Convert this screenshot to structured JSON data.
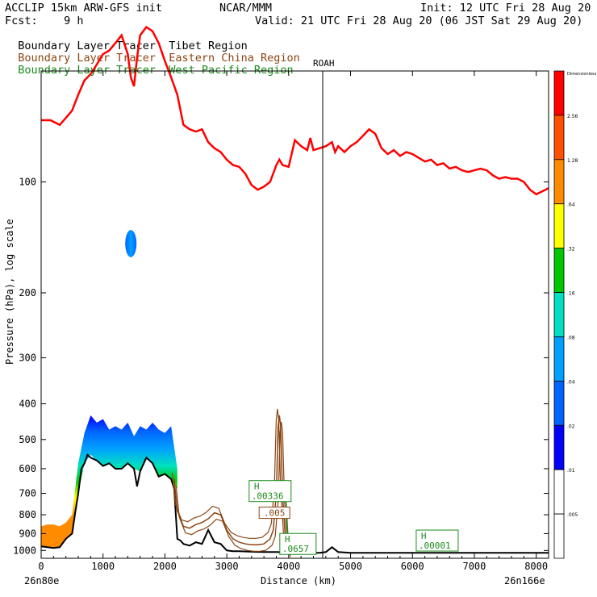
{
  "header": {
    "model": "ACCLIP 15km ARW-GFS init",
    "org": "NCAR/MMM",
    "init": "Init: 12 UTC Fri 28 Aug 20",
    "fcst": "Fcst:    9 h",
    "valid": "Valid: 21 UTC Fri 28 Aug 20 (06 JST Sat 29 Aug 20)",
    "legend": [
      {
        "prefix": "Boundary Layer Tracer",
        "region": "Tibet Region",
        "color": "#000000"
      },
      {
        "prefix": "Boundary Layer Tracer",
        "region": "Eastern China Region",
        "color": "#8b4513"
      },
      {
        "prefix": "Boundary Layer Tracer",
        "region": "West Pacific Region",
        "color": "#1a8a1a"
      }
    ]
  },
  "colorbar": {
    "levels": [
      "Dimensionless",
      "2.56",
      "1.28",
      ".64",
      ".32",
      ".16",
      ".08",
      ".04",
      ".02",
      ".01",
      ".005"
    ],
    "colors": [
      "#ff0000",
      "#ff5000",
      "#ff8c00",
      "#ffff00",
      "#00c800",
      "#00e0c0",
      "#00a0ff",
      "#0064ff",
      "#0000ff",
      "#ffffff",
      "#ffffff"
    ]
  },
  "chart_data": {
    "type": "area",
    "title": "",
    "xlabel": "Distance (km)",
    "ylabel": "Pressure (hPa), log scale",
    "xlim": [
      0,
      8200
    ],
    "ylim": [
      1050,
      50
    ],
    "y_scale": "log",
    "x_ticks": [
      0,
      1000,
      2000,
      3000,
      4000,
      5000,
      6000,
      7000,
      8000
    ],
    "y_ticks": [
      100,
      200,
      300,
      400,
      500,
      600,
      700,
      800,
      900,
      1000
    ],
    "x_endpoints": {
      "left": "26n80e",
      "right": "26n166e"
    },
    "vertical_marker": {
      "x": 4550,
      "label": "ROAH"
    },
    "tropopause_line": {
      "color": "#ff0000",
      "x": [
        0,
        150,
        300,
        400,
        500,
        600,
        700,
        800,
        900,
        1000,
        1100,
        1200,
        1300,
        1400,
        1450,
        1500,
        1550,
        1600,
        1700,
        1800,
        1900,
        2000,
        2100,
        2200,
        2300,
        2400,
        2500,
        2600,
        2700,
        2800,
        2900,
        3000,
        3100,
        3200,
        3300,
        3400,
        3500,
        3600,
        3700,
        3800,
        3850,
        3900,
        4000,
        4100,
        4200,
        4300,
        4350,
        4400,
        4500,
        4600,
        4700,
        4750,
        4800,
        4900,
        5000,
        5100,
        5200,
        5300,
        5400,
        5500,
        5600,
        5700,
        5800,
        5900,
        6000,
        6100,
        6200,
        6300,
        6400,
        6500,
        6600,
        6700,
        6800,
        6900,
        7000,
        7100,
        7200,
        7300,
        7400,
        7500,
        7600,
        7700,
        7800,
        7900,
        8000,
        8100,
        8200
      ],
      "p": [
        68,
        68,
        70,
        67,
        64,
        58,
        53,
        51,
        48,
        45,
        44,
        42,
        40,
        45,
        52,
        55,
        46,
        40,
        38,
        39,
        42,
        47,
        52,
        58,
        70,
        72,
        73,
        72,
        78,
        81,
        83,
        87,
        90,
        91,
        95,
        102,
        105,
        103,
        100,
        90,
        87,
        90,
        91,
        77,
        80,
        82,
        76,
        82,
        81,
        80,
        78,
        83,
        80,
        83,
        80,
        78,
        75,
        72,
        74,
        81,
        84,
        82,
        85,
        83,
        84,
        86,
        88,
        87,
        90,
        89,
        92,
        91,
        93,
        94,
        93,
        92,
        93,
        96,
        98,
        97,
        98,
        98,
        100,
        105,
        108,
        106,
        104
      ]
    },
    "series": [
      {
        "name": "Tibet Region",
        "color": "#000000",
        "x": [
          0,
          100,
          200,
          300,
          400,
          500,
          550,
          600,
          650,
          700,
          750,
          800,
          900,
          1000,
          1100,
          1200,
          1300,
          1400,
          1500,
          1550,
          1600,
          1700,
          1800,
          1900,
          2000,
          2100,
          2150,
          2200,
          2250,
          2300,
          2400,
          2500,
          2600,
          2700,
          2800,
          2900,
          3000,
          3100,
          3200,
          3400,
          3600,
          3800,
          4000,
          4200,
          4500,
          4600,
          4700,
          4800,
          5000,
          6000,
          7000,
          8000,
          8200
        ],
        "p": [
          975,
          980,
          985,
          980,
          930,
          900,
          790,
          700,
          600,
          580,
          550,
          560,
          570,
          590,
          580,
          600,
          600,
          580,
          600,
          670,
          610,
          560,
          580,
          630,
          620,
          640,
          680,
          930,
          940,
          960,
          970,
          950,
          960,
          880,
          950,
          960,
          1000,
          1005,
          1005,
          1008,
          1010,
          1010,
          1012,
          1015,
          1015,
          1010,
          980,
          1010,
          1015,
          1015,
          1015,
          1015,
          1015
        ]
      },
      {
        "name": "Eastern China Region",
        "color": "#8b4513",
        "x": [
          2150,
          2200,
          2300,
          2400,
          2500,
          2600,
          2700,
          2800,
          2900,
          3000,
          3100,
          3200,
          3300,
          3400,
          3500,
          3600,
          3700,
          3750,
          3800,
          3830,
          3850,
          3870,
          3900,
          3950,
          4000
        ],
        "p": [
          640,
          780,
          860,
          870,
          850,
          840,
          820,
          790,
          800,
          880,
          930,
          950,
          960,
          965,
          965,
          960,
          930,
          880,
          700,
          460,
          430,
          460,
          700,
          950,
          1000
        ]
      },
      {
        "name": "West Pacific Region",
        "color": "#1a8a1a",
        "x": [
          3800,
          3850,
          3900,
          3950,
          4000
        ],
        "p": [
          700,
          680,
          650,
          700,
          1000
        ]
      }
    ],
    "tracer_shading": {
      "x": [
        0,
        100,
        200,
        300,
        400,
        500,
        600,
        700,
        800,
        900,
        1000,
        1100,
        1200,
        1300,
        1400,
        1500,
        1600,
        1700,
        1800,
        1900,
        2000,
        2100,
        2200
      ],
      "top": [
        860,
        850,
        850,
        860,
        840,
        800,
        580,
        480,
        430,
        450,
        440,
        470,
        460,
        470,
        450,
        490,
        460,
        470,
        450,
        470,
        480,
        460,
        600
      ],
      "bottom": [
        975,
        980,
        985,
        980,
        930,
        900,
        700,
        580,
        550,
        570,
        590,
        580,
        600,
        600,
        580,
        600,
        610,
        560,
        580,
        630,
        620,
        640,
        680
      ]
    },
    "blob": {
      "x": 1450,
      "p_top": 135,
      "p_bottom": 160
    },
    "annotations": [
      {
        "text": "H",
        "value": ".00336",
        "x": 3700,
        "p": 690,
        "color": "#1a8a1a"
      },
      {
        "text": "",
        "value": ".005",
        "x": 3770,
        "p": 790,
        "color": "#8b4513"
      },
      {
        "text": "H",
        "value": ".0657",
        "x": 4150,
        "p": 960,
        "color": "#1a8a1a"
      },
      {
        "text": "H",
        "value": ".00001",
        "x": 6400,
        "p": 940,
        "color": "#1a8a1a"
      }
    ]
  }
}
